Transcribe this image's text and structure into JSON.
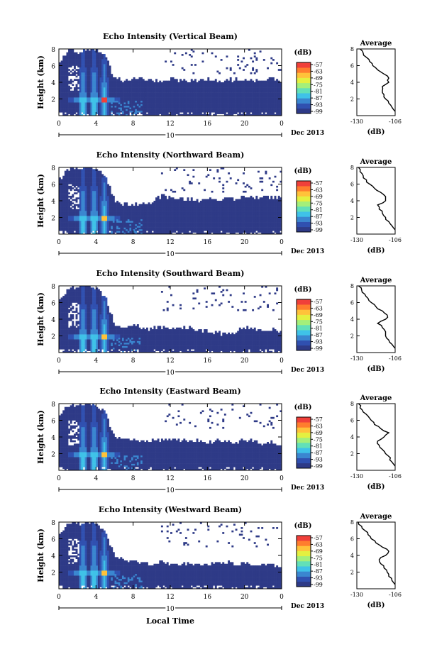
{
  "figure": {
    "xaxis_title": "Local Time"
  },
  "chart_data": [
    {
      "type": "heatmap",
      "title": "Echo Intensity (Vertical Beam)",
      "ylabel": "Height (km)",
      "xlim": [
        0,
        24
      ],
      "ylim": [
        0,
        8
      ],
      "x_ticks": [
        "0",
        "4",
        "8",
        "12",
        "16",
        "20",
        "0"
      ],
      "y_ticks": [
        "2",
        "4",
        "6",
        "8"
      ],
      "date_tick": "10",
      "date_label": "Dec 2013",
      "colorbar": {
        "unit": "(dB)",
        "ticks": [
          "-57",
          "-63",
          "-69",
          "-75",
          "-81",
          "-87",
          "-93",
          "-99"
        ]
      },
      "cloud_top_km": [
        6.2,
        7.8,
        7.6,
        8.0,
        7.9,
        7.2,
        4.4,
        4.3,
        4.3,
        4.4,
        4.2,
        4.2,
        4.4,
        4.3,
        4.2,
        4.3,
        4.4,
        4.2,
        4.3,
        4.3,
        4.4,
        4.2,
        4.3,
        4.4,
        4.3
      ],
      "bright_bands_hours": [
        2.6,
        3.8,
        4.9
      ],
      "average_profile": {
        "title": "Average",
        "xlabel": "(dB)",
        "xlim": [
          -130,
          -106
        ],
        "x_ticks": [
          "-130",
          "-106"
        ],
        "y_ticks": [
          "2",
          "4",
          "6",
          "8"
        ],
        "heights_km": [
          0.5,
          1.0,
          1.5,
          2.0,
          2.5,
          3.0,
          3.5,
          4.0,
          4.5,
          5.0,
          5.5,
          6.0,
          6.5,
          7.0,
          7.5,
          8.0
        ],
        "values_db": [
          -106,
          -108,
          -110,
          -112,
          -113,
          -114,
          -114,
          -110,
          -110,
          -113,
          -117,
          -120,
          -122,
          -124,
          -126,
          -128
        ]
      }
    },
    {
      "type": "heatmap",
      "title": "Echo Intensity (Northward Beam)",
      "ylabel": "Height (km)",
      "xlim": [
        0,
        24
      ],
      "ylim": [
        0,
        8
      ],
      "x_ticks": [
        "0",
        "4",
        "8",
        "12",
        "16",
        "20",
        "0"
      ],
      "y_ticks": [
        "2",
        "4",
        "6",
        "8"
      ],
      "date_tick": "10",
      "date_label": "Dec 2013",
      "colorbar": {
        "unit": "(dB)",
        "ticks": [
          "-57",
          "-63",
          "-69",
          "-75",
          "-81",
          "-87",
          "-93",
          "-99"
        ]
      },
      "cloud_top_km": [
        6.5,
        7.8,
        7.9,
        8.0,
        7.9,
        7.0,
        4.0,
        3.6,
        3.5,
        3.6,
        3.8,
        4.6,
        4.5,
        4.3,
        4.2,
        4.0,
        4.2,
        4.0,
        4.4,
        4.2,
        4.5,
        4.3,
        4.4,
        4.5,
        4.3
      ],
      "bright_bands_hours": [
        2.6,
        3.8,
        4.9
      ],
      "average_profile": {
        "title": "Average",
        "xlabel": "(dB)",
        "xlim": [
          -130,
          -106
        ],
        "x_ticks": [
          "-130",
          "-106"
        ],
        "y_ticks": [
          "2",
          "4",
          "6",
          "8"
        ],
        "heights_km": [
          0.5,
          1.0,
          1.5,
          2.0,
          2.5,
          3.0,
          3.5,
          4.0,
          4.5,
          5.0,
          5.5,
          6.0,
          6.5,
          7.0,
          7.5,
          8.0
        ],
        "values_db": [
          -106,
          -108,
          -110,
          -112,
          -114,
          -116,
          -117,
          -112,
          -112,
          -115,
          -119,
          -122,
          -124,
          -126,
          -128,
          -129
        ]
      }
    },
    {
      "type": "heatmap",
      "title": "Echo Intensity (Southward Beam)",
      "ylabel": "Height (km)",
      "xlim": [
        0,
        24
      ],
      "ylim": [
        0,
        8
      ],
      "x_ticks": [
        "0",
        "4",
        "8",
        "12",
        "16",
        "20",
        "0"
      ],
      "y_ticks": [
        "2",
        "4",
        "6",
        "8"
      ],
      "date_tick": "10",
      "date_label": "Dec 2013",
      "colorbar": {
        "unit": "(dB)",
        "ticks": [
          "-57",
          "-63",
          "-69",
          "-75",
          "-81",
          "-87",
          "-93",
          "-99"
        ]
      },
      "cloud_top_km": [
        6.0,
        7.6,
        7.8,
        8.0,
        7.8,
        6.8,
        3.4,
        3.0,
        3.2,
        3.0,
        2.8,
        3.1,
        3.0,
        2.9,
        3.0,
        2.6,
        2.5,
        2.4,
        2.2,
        2.5,
        3.0,
        2.8,
        2.6,
        2.8,
        2.4
      ],
      "bright_bands_hours": [
        2.6,
        3.8,
        4.9
      ],
      "average_profile": {
        "title": "Average",
        "xlabel": "(dB)",
        "xlim": [
          -130,
          -106
        ],
        "x_ticks": [
          "-130",
          "-106"
        ],
        "y_ticks": [
          "2",
          "4",
          "6",
          "8"
        ],
        "heights_km": [
          0.5,
          1.0,
          1.5,
          2.0,
          2.5,
          3.0,
          3.5,
          4.0,
          4.5,
          5.0,
          5.5,
          6.0,
          6.5,
          7.0,
          7.5,
          8.0
        ],
        "values_db": [
          -106,
          -108,
          -110,
          -112,
          -112,
          -114,
          -117,
          -112,
          -111,
          -114,
          -118,
          -121,
          -123,
          -125,
          -127,
          -129
        ]
      }
    },
    {
      "type": "heatmap",
      "title": "Echo Intensity (Eastward Beam)",
      "ylabel": "Height (km)",
      "xlim": [
        0,
        24
      ],
      "ylim": [
        0,
        8
      ],
      "x_ticks": [
        "0",
        "4",
        "8",
        "12",
        "16",
        "20",
        "0"
      ],
      "y_ticks": [
        "2",
        "4",
        "6",
        "8"
      ],
      "date_tick": "10",
      "date_label": "Dec 2013",
      "colorbar": {
        "unit": "(dB)",
        "ticks": [
          "-57",
          "-63",
          "-69",
          "-75",
          "-81",
          "-87",
          "-93",
          "-99"
        ]
      },
      "cloud_top_km": [
        6.2,
        7.8,
        7.7,
        8.0,
        7.9,
        7.0,
        4.0,
        3.8,
        3.6,
        3.7,
        3.5,
        3.6,
        3.8,
        3.6,
        3.5,
        3.6,
        3.3,
        3.6,
        3.5,
        3.4,
        3.6,
        3.5,
        3.2,
        3.4,
        2.9
      ],
      "bright_bands_hours": [
        2.6,
        3.8,
        4.9
      ],
      "average_profile": {
        "title": "Average",
        "xlabel": "(dB)",
        "xlim": [
          -130,
          -106
        ],
        "x_ticks": [
          "-130",
          "-106"
        ],
        "y_ticks": [
          "2",
          "4",
          "6",
          "8"
        ],
        "heights_km": [
          0.5,
          1.0,
          1.5,
          2.0,
          2.5,
          3.0,
          3.5,
          4.0,
          4.5,
          5.0,
          5.5,
          6.0,
          6.5,
          7.0,
          7.5,
          8.0
        ],
        "values_db": [
          -106,
          -108,
          -109,
          -112,
          -114,
          -116,
          -117,
          -113,
          -110,
          -115,
          -119,
          -121,
          -123,
          -126,
          -128,
          -129
        ]
      }
    },
    {
      "type": "heatmap",
      "title": "Echo Intensity (Westward Beam)",
      "ylabel": "Height (km)",
      "xlim": [
        0,
        24
      ],
      "ylim": [
        0,
        8
      ],
      "x_ticks": [
        "0",
        "4",
        "8",
        "12",
        "16",
        "20",
        "0"
      ],
      "y_ticks": [
        "2",
        "4",
        "6",
        "8"
      ],
      "date_tick": "10",
      "date_label": "Dec 2013",
      "colorbar": {
        "unit": "(dB)",
        "ticks": [
          "-57",
          "-63",
          "-69",
          "-75",
          "-81",
          "-87",
          "-93",
          "-99"
        ]
      },
      "cloud_top_km": [
        6.3,
        7.8,
        7.8,
        8.0,
        7.9,
        6.9,
        4.0,
        3.6,
        3.4,
        3.3,
        3.0,
        3.2,
        3.1,
        2.9,
        3.0,
        2.7,
        2.9,
        3.1,
        3.2,
        3.0,
        3.1,
        2.9,
        3.0,
        2.8,
        2.6
      ],
      "bright_bands_hours": [
        2.6,
        3.8,
        4.9
      ],
      "average_profile": {
        "title": "Average",
        "xlabel": "(dB)",
        "xlim": [
          -130,
          -106
        ],
        "x_ticks": [
          "-130",
          "-106"
        ],
        "y_ticks": [
          "2",
          "4",
          "6",
          "8"
        ],
        "heights_km": [
          0.5,
          1.0,
          1.5,
          2.0,
          2.5,
          3.0,
          3.5,
          4.0,
          4.5,
          5.0,
          5.5,
          6.0,
          6.5,
          7.0,
          7.5,
          8.0
        ],
        "values_db": [
          -106,
          -108,
          -110,
          -111,
          -113,
          -115,
          -116,
          -112,
          -110,
          -114,
          -118,
          -121,
          -123,
          -125,
          -127,
          -129
        ]
      }
    }
  ]
}
